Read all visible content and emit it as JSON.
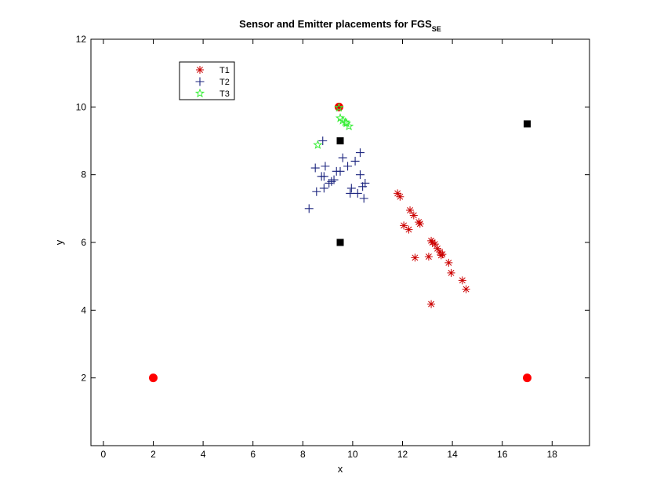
{
  "chart_data": {
    "type": "scatter",
    "title": "Sensor and Emitter placements for FGS",
    "title_subscript": "SE",
    "xlabel": "x",
    "ylabel": "y",
    "xlim": [
      -0.5,
      19.5
    ],
    "ylim": [
      0,
      12
    ],
    "xticks": [
      0,
      2,
      4,
      6,
      8,
      10,
      12,
      14,
      16,
      18
    ],
    "yticks": [
      2,
      4,
      6,
      8,
      10,
      12
    ],
    "grid": false,
    "legend_position": "top-left",
    "series": [
      {
        "name": "T1",
        "marker": "asterisk",
        "color": "#cc0000",
        "points": [
          [
            11.8,
            7.45
          ],
          [
            11.9,
            7.35
          ],
          [
            12.3,
            6.95
          ],
          [
            12.45,
            6.8
          ],
          [
            12.65,
            6.6
          ],
          [
            12.7,
            6.55
          ],
          [
            12.05,
            6.5
          ],
          [
            12.25,
            6.38
          ],
          [
            13.15,
            6.05
          ],
          [
            13.2,
            6.0
          ],
          [
            13.3,
            5.95
          ],
          [
            13.4,
            5.82
          ],
          [
            13.5,
            5.72
          ],
          [
            13.6,
            5.65
          ],
          [
            13.55,
            5.62
          ],
          [
            13.85,
            5.4
          ],
          [
            12.5,
            5.55
          ],
          [
            13.05,
            5.58
          ],
          [
            13.95,
            5.1
          ],
          [
            14.4,
            4.88
          ],
          [
            14.55,
            4.62
          ],
          [
            13.15,
            4.18
          ],
          [
            9.45,
            10.0
          ]
        ]
      },
      {
        "name": "T2",
        "marker": "plus",
        "color": "#1a237e",
        "points": [
          [
            8.8,
            9.0
          ],
          [
            8.25,
            7.0
          ],
          [
            8.55,
            7.5
          ],
          [
            8.5,
            8.2
          ],
          [
            8.75,
            7.95
          ],
          [
            8.85,
            7.95
          ],
          [
            8.9,
            8.25
          ],
          [
            8.85,
            7.6
          ],
          [
            9.05,
            7.75
          ],
          [
            9.15,
            7.8
          ],
          [
            9.25,
            7.85
          ],
          [
            9.35,
            8.1
          ],
          [
            9.5,
            8.1
          ],
          [
            9.6,
            8.5
          ],
          [
            9.8,
            8.25
          ],
          [
            9.9,
            7.45
          ],
          [
            9.95,
            7.6
          ],
          [
            10.1,
            8.4
          ],
          [
            10.2,
            7.45
          ],
          [
            10.3,
            8.65
          ],
          [
            10.3,
            8.0
          ],
          [
            10.4,
            7.65
          ],
          [
            10.45,
            7.3
          ],
          [
            10.5,
            7.75
          ]
        ]
      },
      {
        "name": "T3",
        "marker": "pentagram",
        "color": "#33ee33",
        "points": [
          [
            8.6,
            8.88
          ],
          [
            9.45,
            9.98
          ],
          [
            9.5,
            9.67
          ],
          [
            9.6,
            9.6
          ],
          [
            9.7,
            9.55
          ],
          [
            9.75,
            9.52
          ],
          [
            9.85,
            9.43
          ]
        ]
      }
    ],
    "sensors": {
      "marker": "square",
      "color": "#000000",
      "points": [
        [
          9.5,
          9.0
        ],
        [
          9.5,
          6.0
        ],
        [
          17.0,
          9.5
        ]
      ]
    },
    "emitters": {
      "marker": "circle",
      "color": "#ff0000",
      "points": [
        [
          2.0,
          2.0
        ],
        [
          17.0,
          2.0
        ],
        [
          9.45,
          10.0
        ]
      ]
    }
  }
}
